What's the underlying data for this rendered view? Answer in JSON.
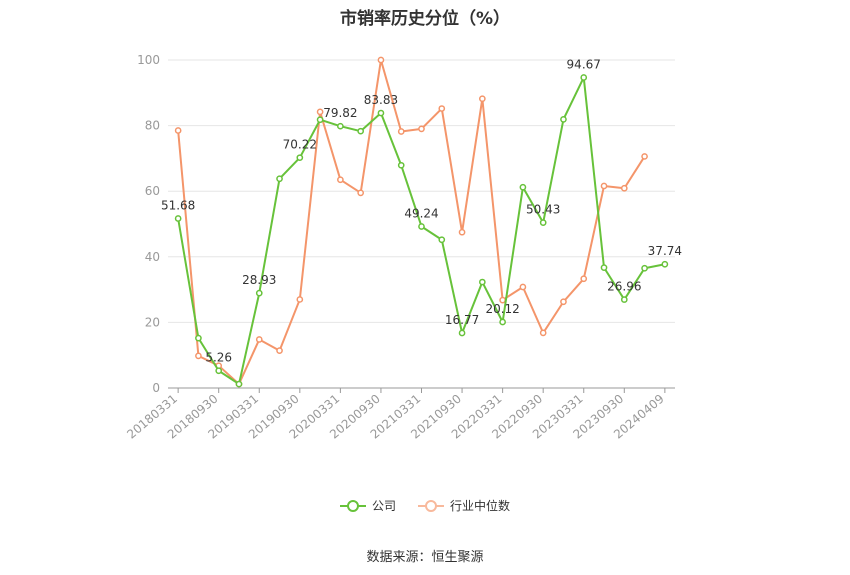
{
  "title": "市销率历史分位（%）",
  "source": "数据来源：恒生聚源",
  "chart_data": {
    "type": "line",
    "ylim": [
      0,
      100
    ],
    "yticks": [
      0,
      20,
      40,
      60,
      80,
      100
    ],
    "x_tick_labels": [
      "20180331",
      "20180930",
      "20190331",
      "20190930",
      "20200331",
      "20200930",
      "20210331",
      "20210930",
      "20220331",
      "20220930",
      "20230331",
      "20230930",
      "20240409"
    ],
    "grid": true,
    "legend_position": "bottom",
    "series": [
      {
        "name": "公司",
        "color": "#67c23a",
        "values": [
          51.68,
          15.2,
          5.26,
          1.2,
          28.93,
          63.8,
          70.22,
          81.8,
          79.82,
          78.3,
          83.83,
          67.9,
          49.24,
          45.2,
          16.77,
          32.3,
          20.12,
          61.2,
          50.43,
          81.9,
          94.67,
          36.7,
          26.96,
          36.5,
          37.74
        ],
        "labels": {
          "0": "51.68",
          "2": "5.26",
          "4": "28.93",
          "6": "70.22",
          "8": "79.82",
          "10": "83.83",
          "12": "49.24",
          "14": "16.77",
          "16": "20.12",
          "18": "50.43",
          "20": "94.67",
          "22": "26.96",
          "24": "37.74"
        }
      },
      {
        "name": "行业中位数",
        "color": "#f4956a",
        "values": [
          78.5,
          9.8,
          6.8,
          1.2,
          14.8,
          11.4,
          27.0,
          84.2,
          63.5,
          59.5,
          100.0,
          78.2,
          79.0,
          85.2,
          47.5,
          88.2,
          26.8,
          30.8,
          16.8,
          26.3,
          33.3,
          61.6,
          60.9,
          70.6,
          null
        ]
      }
    ]
  }
}
